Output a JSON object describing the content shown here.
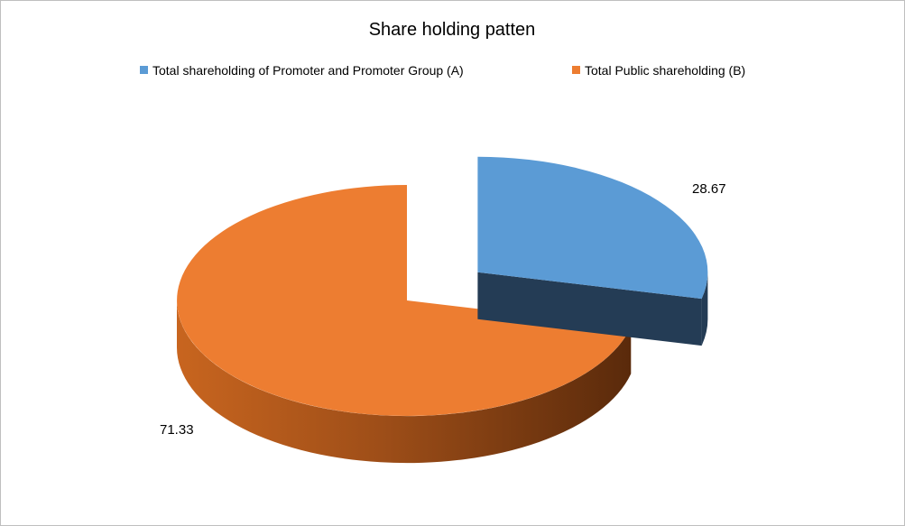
{
  "chart_data": {
    "type": "pie",
    "style": "3d-exploded",
    "title": "Share holding patten",
    "legend_position": "top",
    "slices": [
      {
        "label": "Total shareholding of Promoter and Promoter Group (A)",
        "value": 28.67,
        "color": "#5b9bd5",
        "side_color": "#243c55",
        "exploded": true
      },
      {
        "label": "Total Public shareholding (B)",
        "value": 71.33,
        "color": "#ed7d31",
        "side_color": "#8b4510",
        "exploded": false
      }
    ]
  }
}
